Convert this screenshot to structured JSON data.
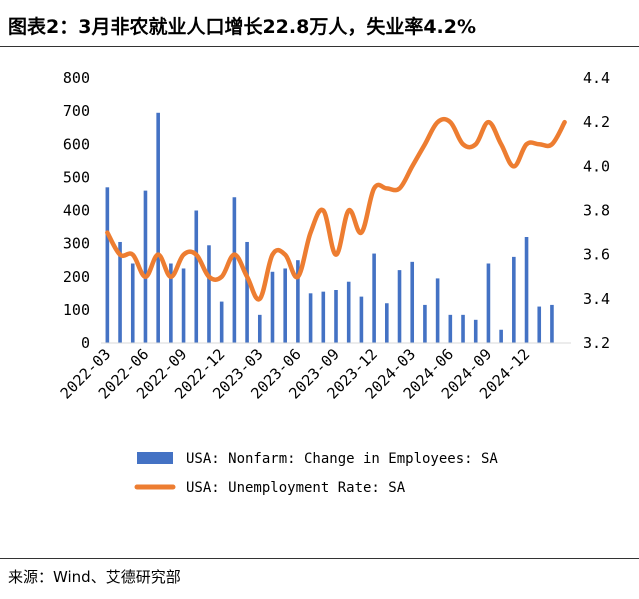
{
  "title": "图表2：3月非农就业人口增长22.8万人，失业率4.2%",
  "source": "来源：Wind、艾德研究部",
  "colors": {
    "bar": "#4472C4",
    "line": "#ED7D31"
  },
  "chart_data": {
    "type": "bar+line",
    "categories": [
      "2022-03",
      "2022-04",
      "2022-05",
      "2022-06",
      "2022-07",
      "2022-08",
      "2022-09",
      "2022-10",
      "2022-11",
      "2022-12",
      "2023-01",
      "2023-02",
      "2023-03",
      "2023-04",
      "2023-05",
      "2023-06",
      "2023-07",
      "2023-08",
      "2023-09",
      "2023-10",
      "2023-11",
      "2023-12",
      "2024-01",
      "2024-02",
      "2024-03",
      "2024-04",
      "2024-05",
      "2024-06",
      "2024-07",
      "2024-08",
      "2024-09",
      "2024-10",
      "2024-11",
      "2024-12",
      "2025-01",
      "2025-02",
      "2025-03"
    ],
    "x_tick_labels": [
      "2022-03",
      "2022-06",
      "2022-09",
      "2022-12",
      "2023-03",
      "2023-06",
      "2023-09",
      "2023-12",
      "2024-03",
      "2024-06",
      "2024-09",
      "2024-12"
    ],
    "series": [
      {
        "name": "USA: Nonfarm: Change in Employees: SA",
        "type": "bar",
        "axis": "left",
        "values": [
          470,
          305,
          240,
          460,
          695,
          240,
          225,
          400,
          295,
          125,
          440,
          305,
          85,
          215,
          225,
          250,
          150,
          155,
          160,
          185,
          140,
          270,
          120,
          220,
          245,
          115,
          195,
          85,
          85,
          70,
          240,
          40,
          260,
          320,
          110,
          115,
          null
        ]
      },
      {
        "name": "USA: Unemployment Rate: SA",
        "type": "line",
        "axis": "right",
        "values": [
          3.7,
          3.6,
          3.6,
          3.5,
          3.6,
          3.5,
          3.6,
          3.6,
          3.5,
          3.5,
          3.6,
          3.5,
          3.4,
          3.6,
          3.6,
          3.5,
          3.7,
          3.8,
          3.6,
          3.8,
          3.7,
          3.9,
          3.9,
          3.9,
          4.0,
          4.1,
          4.2,
          4.2,
          4.1,
          4.1,
          4.2,
          4.1,
          4.0,
          4.1,
          4.1,
          4.1,
          4.2
        ]
      }
    ],
    "y_left": {
      "ticks": [
        0,
        100,
        200,
        300,
        400,
        500,
        600,
        700,
        800
      ],
      "ylim": [
        0,
        800
      ]
    },
    "y_right": {
      "ticks": [
        "3.2",
        "3.4",
        "3.6",
        "3.8",
        "4.0",
        "4.2",
        "4.4"
      ],
      "ylim": [
        3.2,
        4.4
      ]
    },
    "legend_position": "bottom"
  }
}
